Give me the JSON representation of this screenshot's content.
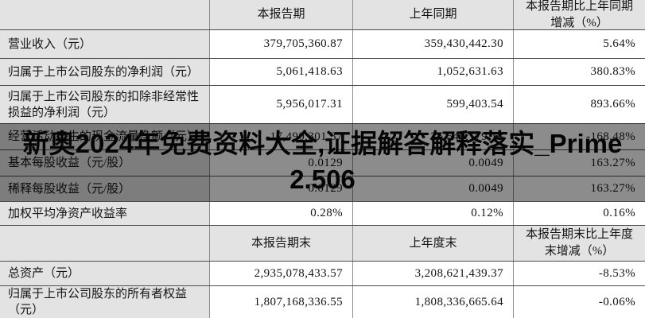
{
  "banner": {
    "line1": "新奥2024年免费资料大全,证据解答解释落实_Prime",
    "line2": "2.506"
  },
  "colors": {
    "cell_gray": "#e3e3e3",
    "overlay": "rgba(0,0,0,0.45)",
    "border_dark": "#4c4c4c",
    "border_light": "#8d8d8d"
  },
  "table": {
    "header_period": {
      "col_label": "",
      "col_current": "本报告期",
      "col_prior": "上年同期",
      "col_change_lines": [
        "本报告期比上年同期",
        "增减（%）"
      ]
    },
    "rows_period": [
      {
        "label": "营业收入（元）",
        "current": "379,705,360.87",
        "prior": "359,430,442.30",
        "change": "5.64%"
      },
      {
        "label": "归属于上市公司股东的净利润（元）",
        "current": "5,061,418.63",
        "prior": "1,052,631.63",
        "change": "380.83%"
      },
      {
        "label": "归属于上市公司股东的扣除非经常性损益的净利润（元）",
        "current": "5,956,017.31",
        "prior": "599,403.54",
        "change": "893.66%"
      },
      {
        "label": "经营活动产生的现金流量净额（元）",
        "current": "-17,490,301.37",
        "prior": "25,540,179.13",
        "change": "-168.48%"
      },
      {
        "label": "基本每股收益（元/股）",
        "current": "0.0129",
        "prior": "0.0049",
        "change": "163.27%"
      },
      {
        "label": "稀释每股收益（元/股）",
        "current": "0.0129",
        "prior": "0.0049",
        "change": "163.27%"
      },
      {
        "label": "加权平均净资产收益率",
        "current": "0.28%",
        "prior": "0.12%",
        "change": "0.16%"
      }
    ],
    "header_yearend": {
      "col_label": "",
      "col_current": "本报告期末",
      "col_prior": "上年度末",
      "col_change_lines": [
        "本报告期末比上年度",
        "末增减（%）"
      ]
    },
    "rows_yearend": [
      {
        "label": "总资产（元）",
        "current": "2,935,078,433.57",
        "prior": "3,208,621,439.37",
        "change": "-8.53%"
      },
      {
        "label": "归属于上市公司股东的所有者权益（元）",
        "current": "1,807,168,336.55",
        "prior": "1,808,336,665.64",
        "change": "-0.06%"
      }
    ]
  }
}
